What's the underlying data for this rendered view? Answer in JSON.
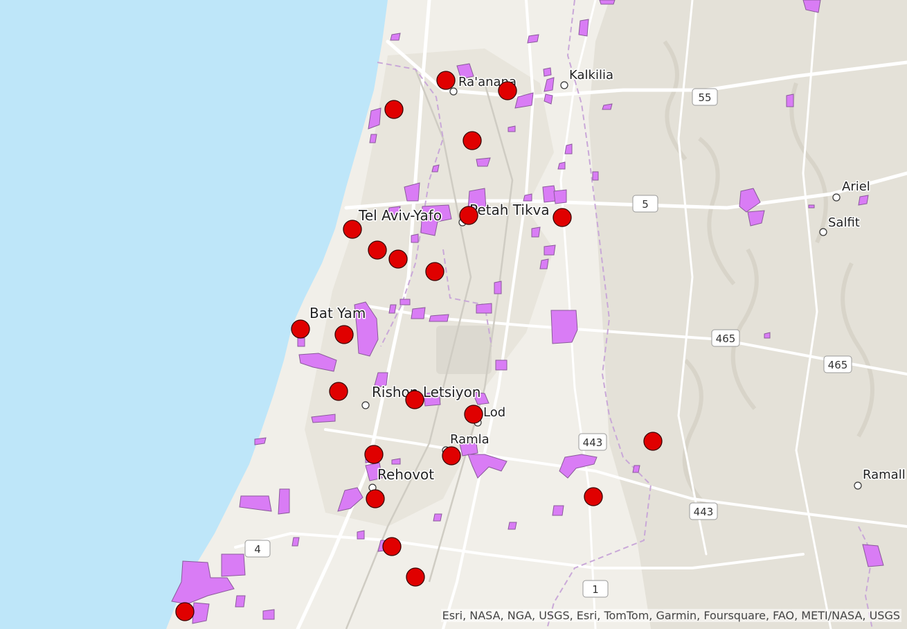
{
  "colors": {
    "sea": "#bee6f9",
    "land": "#f1efe9",
    "urban": "#e6e3d9",
    "hills": "#e2dfd6",
    "area_fill": "#d97cf5",
    "area_stroke": "#8a5a9a",
    "marker_fill": "#e00000",
    "marker_stroke": "#3a0000",
    "road": "#ffffff",
    "major_road": "#d6d3ca",
    "boundary": "#c9a8d8"
  },
  "cities": [
    {
      "id": "raanana",
      "label": "Ra'anana"
    },
    {
      "id": "kalkilia",
      "label": "Kalkilia"
    },
    {
      "id": "tel-aviv",
      "label": "Tel Aviv-Yafo"
    },
    {
      "id": "petah-tikva",
      "label": "Petah Tikva"
    },
    {
      "id": "ariel",
      "label": "Ariel"
    },
    {
      "id": "salfit",
      "label": "Salfit"
    },
    {
      "id": "bat-yam",
      "label": "Bat Yam"
    },
    {
      "id": "rishon",
      "label": "Rishon Letsiyon"
    },
    {
      "id": "lod",
      "label": "Lod"
    },
    {
      "id": "ramla",
      "label": "Ramla"
    },
    {
      "id": "rehovot",
      "label": "Rehovot"
    },
    {
      "id": "ramallah",
      "label": "Ramall"
    }
  ],
  "route_shields": [
    "55",
    "5",
    "465",
    "465",
    "443",
    "443",
    "4",
    "1"
  ],
  "marker_count": 23,
  "attribution": "Esri, NASA, NGA, USGS, Esri, TomTom, Garmin, Foursquare, FAO, METI/NASA, USGS"
}
